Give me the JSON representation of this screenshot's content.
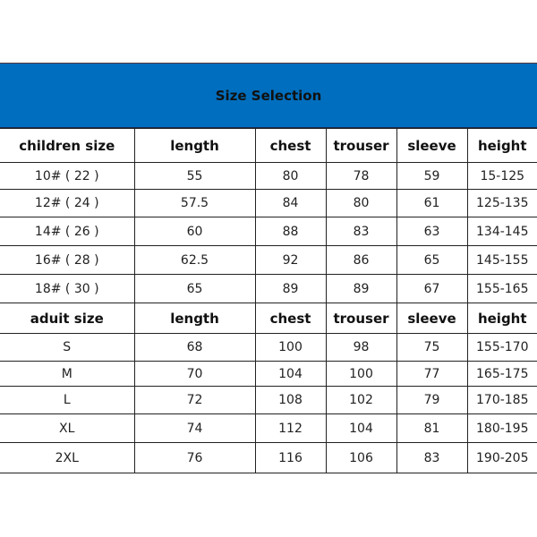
{
  "title": "Size Selection",
  "children": {
    "headers": [
      "children size",
      "length",
      "chest",
      "trouser",
      "sleeve",
      "height"
    ],
    "rows": [
      [
        "10# ( 22 )",
        "55",
        "80",
        "78",
        "59",
        "15-125"
      ],
      [
        "12# ( 24 )",
        "57.5",
        "84",
        "80",
        "61",
        "125-135"
      ],
      [
        "14# ( 26 )",
        "60",
        "88",
        "83",
        "63",
        "134-145"
      ],
      [
        "16# ( 28 )",
        "62.5",
        "92",
        "86",
        "65",
        "145-155"
      ],
      [
        "18# ( 30 )",
        "65",
        "89",
        "89",
        "67",
        "155-165"
      ]
    ]
  },
  "adult": {
    "headers": [
      "aduit size",
      "length",
      "chest",
      "trouser",
      "sleeve",
      "height"
    ],
    "rows": [
      [
        "S",
        "68",
        "100",
        "98",
        "75",
        "155-170"
      ],
      [
        "M",
        "70",
        "104",
        "100",
        "77",
        "165-175"
      ],
      [
        "L",
        "72",
        "108",
        "102",
        "79",
        "170-185"
      ],
      [
        "XL",
        "74",
        "112",
        "104",
        "81",
        "180-195"
      ],
      [
        "2XL",
        "76",
        "116",
        "106",
        "83",
        "190-205"
      ]
    ]
  },
  "colors": {
    "header_band": "#006EBE"
  }
}
